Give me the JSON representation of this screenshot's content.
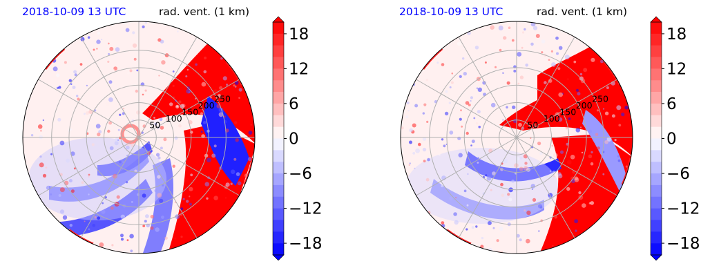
{
  "panels": [
    {
      "title_left": "2018-10-09 13 UTC",
      "title_right": "rad. vent. (1 km)",
      "variant": "a"
    },
    {
      "title_left": "2018-10-09 13 UTC",
      "title_right": "rad. vent. (1 km)",
      "variant": "b"
    }
  ],
  "colors": {
    "negative_max": "#0000ff",
    "neutral": "#ffffff",
    "positive_max": "#ff0000",
    "grid": "#b0b0b0"
  },
  "chart_data": [
    {
      "type": "heatmap",
      "projection": "polar",
      "quantity": "rad. vent. (1 km)",
      "timestamp": "2018-10-09 13 UTC",
      "range_rings": [
        50,
        100,
        150,
        200,
        250
      ],
      "ring_labels": [
        "50",
        "100",
        "150",
        "200",
        "250"
      ],
      "azimuth_lines_deg": [
        0,
        30,
        60,
        90,
        120,
        150,
        180,
        210,
        240,
        270,
        300,
        330
      ],
      "colorbar": {
        "range": [
          -20,
          20
        ],
        "ticks": [
          -18,
          -12,
          -6,
          0,
          6,
          12,
          18
        ],
        "tick_labels": [
          "−18",
          "−12",
          "−6",
          "0",
          "6",
          "12",
          "18"
        ],
        "levels": 20,
        "extend": "both",
        "colormap": "bwr"
      }
    },
    {
      "type": "heatmap",
      "projection": "polar",
      "quantity": "rad. vent. (1 km)",
      "timestamp": "2018-10-09 13 UTC",
      "range_rings": [
        50,
        100,
        150,
        200,
        250
      ],
      "ring_labels": [
        "50",
        "100",
        "150",
        "200",
        "250"
      ],
      "azimuth_lines_deg": [
        0,
        30,
        60,
        90,
        120,
        150,
        180,
        210,
        240,
        270,
        300,
        330
      ],
      "colorbar": {
        "range": [
          -20,
          20
        ],
        "ticks": [
          -18,
          -12,
          -6,
          0,
          6,
          12,
          18
        ],
        "tick_labels": [
          "−18",
          "−12",
          "−6",
          "0",
          "6",
          "12",
          "18"
        ],
        "levels": 20,
        "extend": "both",
        "colormap": "bwr"
      }
    }
  ]
}
